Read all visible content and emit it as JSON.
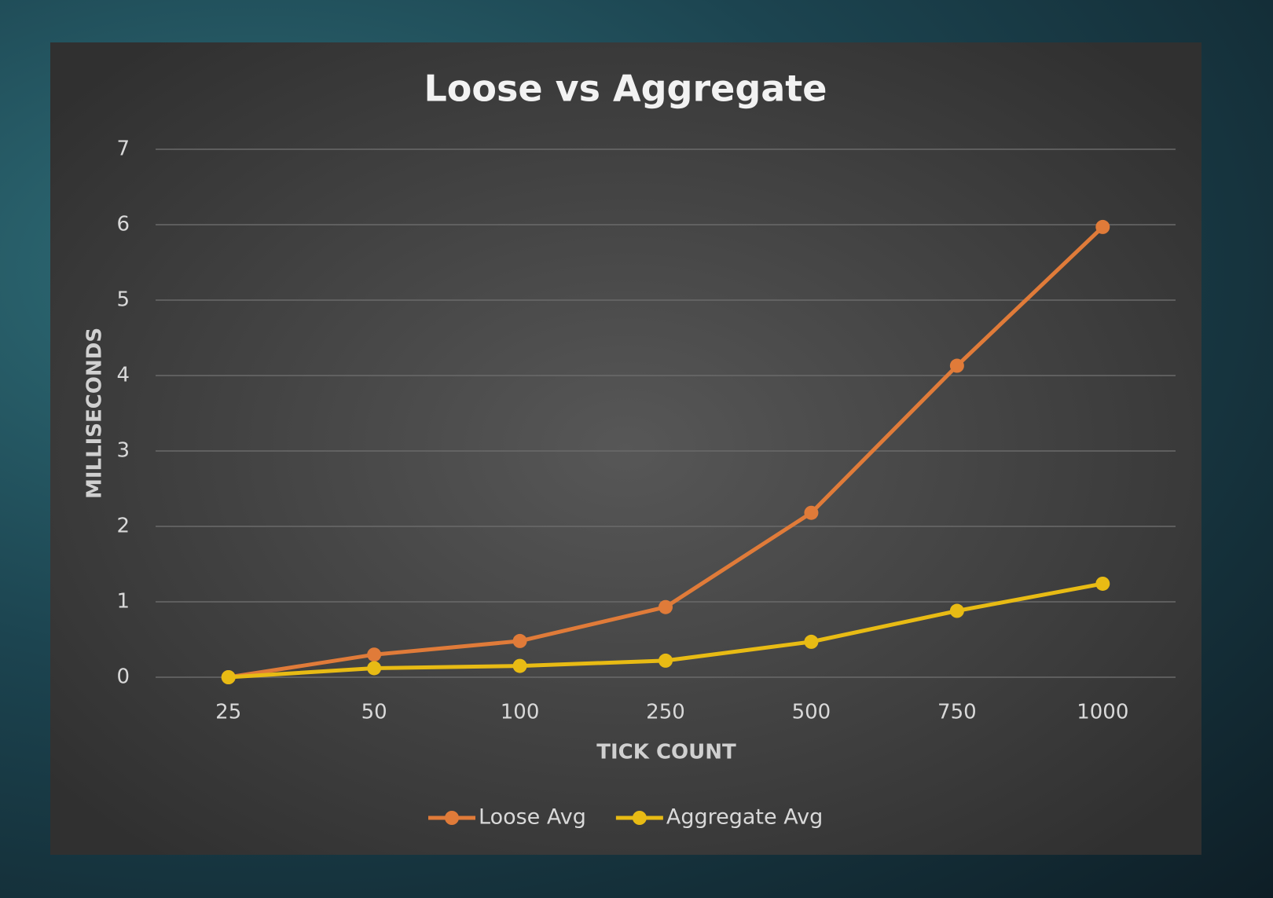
{
  "chart_data": {
    "type": "line",
    "title": "Loose vs Aggregate",
    "x_label": "TICK COUNT",
    "y_label": "MILLISECONDS",
    "categories": [
      "25",
      "50",
      "100",
      "250",
      "500",
      "750",
      "1000"
    ],
    "series": [
      {
        "name": "Loose Avg",
        "color": "#e07b39",
        "values": [
          0,
          0.3,
          0.48,
          0.93,
          2.18,
          4.13,
          5.97
        ]
      },
      {
        "name": "Aggregate Avg",
        "color": "#e8bb14",
        "values": [
          0,
          0.12,
          0.15,
          0.22,
          0.47,
          0.88,
          1.24
        ]
      }
    ],
    "ylim": [
      0,
      7
    ],
    "yticks": [
      0,
      1,
      2,
      3,
      4,
      5,
      6,
      7
    ],
    "grid": true,
    "legend": "bottom"
  }
}
